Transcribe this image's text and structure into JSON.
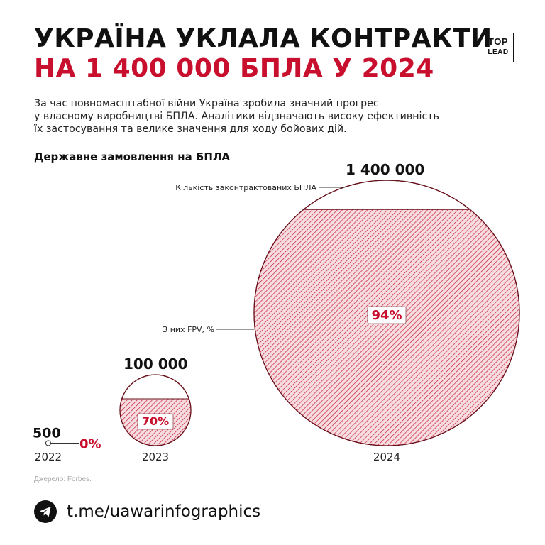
{
  "header": {
    "title_line1": "УКРАЇНА УКЛАЛА КОНТРАКТИ",
    "title_line2": "НА 1 400 000 БПЛА У 2024",
    "logo_top": "TOP",
    "logo_bottom": "LEAD"
  },
  "description": {
    "line1": "За час повномасштабної війни Україна зробила значний прогрес",
    "line2": "у власному виробництві БПЛА. Аналітики відзначають високу ефективність",
    "line3": "їх застосування та велике значення для ходу бойових дій."
  },
  "chart_data": {
    "type": "bubble",
    "title": "Державне замовлення на БПЛА",
    "annotation_total": "Кількість законтрактованих БПЛА",
    "annotation_fpv": "З них FPV, %",
    "points": [
      {
        "year": "2022",
        "total": 500,
        "total_label": "500",
        "fpv_percent": 0,
        "fpv_label": "0%"
      },
      {
        "year": "2023",
        "total": 100000,
        "total_label": "100 000",
        "fpv_percent": 70,
        "fpv_label": "70%"
      },
      {
        "year": "2024",
        "total": 1400000,
        "total_label": "1 400 000",
        "fpv_percent": 94,
        "fpv_label": "94%"
      }
    ],
    "colors": {
      "accent": "#c8102e",
      "fill": "#f3d3d6",
      "outline": "#6b0f1a"
    }
  },
  "footer": {
    "source": "Джерело: Forbes.",
    "telegram": "t.me/uawarinfographics"
  }
}
